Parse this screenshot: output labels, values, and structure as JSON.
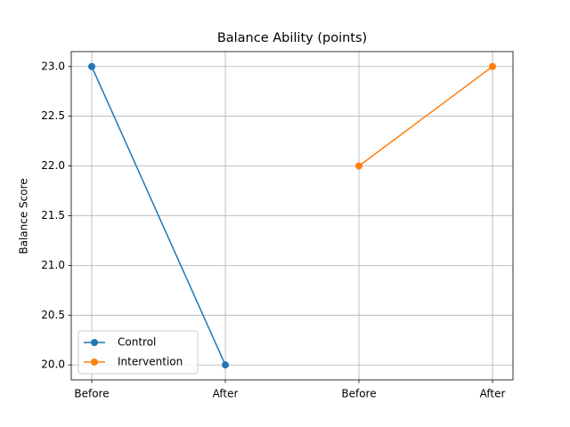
{
  "chart_data": {
    "type": "line",
    "title": "Balance Ability (points)",
    "y_label": "Balance Score",
    "categories": [
      "Before",
      "After",
      "Before",
      "After"
    ],
    "series": [
      {
        "name": "Control",
        "color": "#1f77b4",
        "values": [
          23,
          20,
          null,
          null
        ]
      },
      {
        "name": "Intervention",
        "color": "#ff7f0e",
        "values": [
          null,
          null,
          22,
          23
        ]
      }
    ],
    "ylim": [
      19.85,
      23.15
    ],
    "yticks": [
      {
        "value": 20,
        "label": "20.0"
      },
      20.5,
      {
        "value": 21,
        "label": "21.0"
      },
      21.5,
      {
        "value": 22,
        "label": "22.0"
      },
      22.5,
      {
        "value": 23,
        "label": "23.0"
      }
    ],
    "grid": true,
    "legend": "lower left"
  }
}
